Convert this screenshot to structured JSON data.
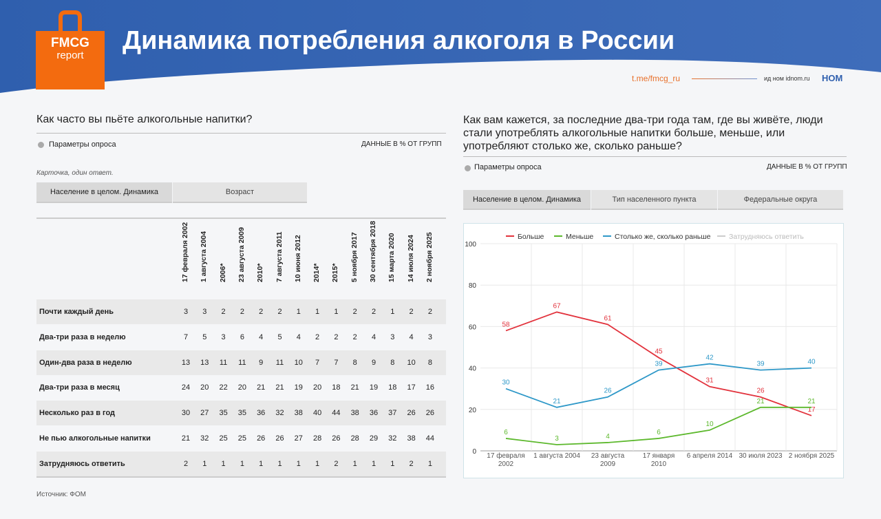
{
  "header": {
    "logo_top": "FMCG",
    "logo_bottom": "report",
    "title": "Динамика потребления алкоголя в России",
    "link": "t.me/fmcg_ru",
    "partner": "ид ном idnom.ru",
    "brand": "НОМ"
  },
  "left": {
    "question": "Как часто вы пьёте алкогольные напитки?",
    "params": "Параметры опроса",
    "units": "ДАННЫЕ В % ОТ ГРУПП",
    "note": "Карточка, один ответ.",
    "tabs": [
      "Население в целом. Динамика",
      "Возраст"
    ],
    "columns": [
      "17 февраля 2002",
      "1 августа 2004",
      "2006*",
      "23 августа 2009",
      "2010*",
      "7 августа 2011",
      "10 июня 2012",
      "2014*",
      "2015*",
      "5 ноября 2017",
      "30 сентября 2018",
      "15 марта 2020",
      "14 июля 2024",
      "2 ноября 2025"
    ],
    "rows": [
      {
        "label": "Почти каждый день",
        "values": [
          3,
          3,
          2,
          2,
          2,
          2,
          1,
          1,
          1,
          2,
          2,
          1,
          2,
          2
        ]
      },
      {
        "label": "Два-три раза в неделю",
        "values": [
          7,
          5,
          3,
          6,
          4,
          5,
          4,
          2,
          2,
          2,
          4,
          3,
          4,
          3
        ]
      },
      {
        "label": "Один-два раза в неделю",
        "values": [
          13,
          13,
          11,
          11,
          9,
          11,
          10,
          7,
          7,
          8,
          9,
          8,
          10,
          8
        ]
      },
      {
        "label": "Два-три раза в месяц",
        "values": [
          24,
          20,
          22,
          20,
          21,
          21,
          19,
          20,
          18,
          21,
          19,
          18,
          17,
          16
        ]
      },
      {
        "label": "Несколько раз в год",
        "values": [
          30,
          27,
          35,
          35,
          36,
          32,
          38,
          40,
          44,
          38,
          36,
          37,
          26,
          26
        ]
      },
      {
        "label": "Не пью алкогольные напитки",
        "values": [
          21,
          32,
          25,
          25,
          26,
          26,
          27,
          28,
          26,
          28,
          29,
          32,
          38,
          44
        ]
      },
      {
        "label": "Затрудняюсь ответить",
        "values": [
          2,
          1,
          1,
          1,
          1,
          1,
          1,
          1,
          2,
          1,
          1,
          1,
          2,
          1
        ]
      }
    ]
  },
  "right": {
    "question": "Как вам кажется, за последние два-три года там, где вы живёте, люди стали употреблять алкогольные напитки больше, меньше, или употребляют столько же, сколько раньше?",
    "params": "Параметры опроса",
    "units": "ДАННЫЕ В % ОТ ГРУПП",
    "tabs": [
      "Население в целом. Динамика",
      "Тип населенного пункта",
      "Федеральные округа"
    ]
  },
  "chart_data": {
    "type": "line",
    "categories": [
      "17 февраля 2002",
      "1 августа 2004",
      "23 августа 2009",
      "17 января 2010",
      "6 апреля 2014",
      "30 июля 2023",
      "2 ноября 2025"
    ],
    "series": [
      {
        "name": "Больше",
        "color": "#e2323c",
        "values": [
          58,
          67,
          61,
          45,
          31,
          26,
          17
        ]
      },
      {
        "name": "Меньше",
        "color": "#5cb82c",
        "values": [
          6,
          3,
          4,
          6,
          10,
          21,
          21
        ]
      },
      {
        "name": "Столько же, сколько раньше",
        "color": "#2e98c8",
        "values": [
          30,
          21,
          26,
          39,
          42,
          39,
          40
        ]
      },
      {
        "name": "Затрудняюсь ответить",
        "color": "#cccccc",
        "values": [
          null,
          null,
          null,
          null,
          null,
          null,
          null
        ]
      }
    ],
    "ylim": [
      0,
      100
    ],
    "yticks": [
      0,
      20,
      40,
      60,
      80,
      100
    ],
    "grid": true
  },
  "source": "Источник: ФОМ"
}
